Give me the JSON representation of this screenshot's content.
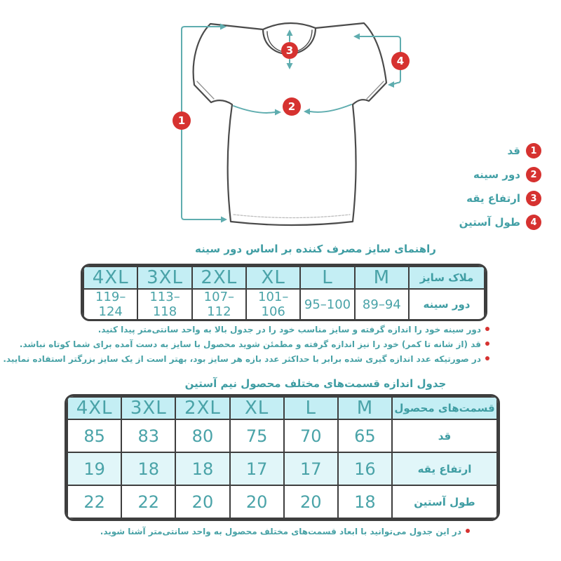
{
  "colors": {
    "teal_text": "#43a0a6",
    "red_marker": "#d63230",
    "table_header_fill": "#c4eef4",
    "table_stripe_fill": "#e1f6f9",
    "table_border": "#3e3e3e"
  },
  "diagram": {
    "markers": [
      {
        "num": "1",
        "label": "قد"
      },
      {
        "num": "2",
        "label": "دور سینه"
      },
      {
        "num": "3",
        "label": "ارتفاع یقه"
      },
      {
        "num": "4",
        "label": "طول آستین"
      }
    ]
  },
  "size_guide": {
    "title": "راهنمای سایز مصرف کننده بر اساس دور سینه",
    "table": {
      "header": [
        "ملاک سایز",
        "M",
        "L",
        "XL",
        "2XL",
        "3XL",
        "4XL"
      ],
      "rows": [
        [
          "دور سینه",
          "89–94",
          "95–100",
          "101–106",
          "107–112",
          "113–118",
          "119–124"
        ]
      ]
    },
    "notes": [
      "دور سینه خود را اندازه گرفته و سایز مناسب خود را در جدول بالا به واحد سانتی‌متر پیدا کنید.",
      "قد (از شانه تا کمر) خود را نیز اندازه گرفته و مطمئن شوید محصول با سایز به دست آمده برای شما کوتاه نباشد.",
      "در صورتیکه عدد اندازه گیری شده برابر با حداکثر عدد بازه هر سایز بود، بهتر است از یک سایز بزرگتر استفاده نمایید."
    ]
  },
  "parts_table": {
    "title": "جدول اندازه قسمت‌های مختلف محصول نیم آستین",
    "table": {
      "header": [
        "قسمت‌های محصول",
        "M",
        "L",
        "XL",
        "2XL",
        "3XL",
        "4XL"
      ],
      "rows": [
        [
          "قد",
          "65",
          "70",
          "75",
          "80",
          "83",
          "85"
        ],
        [
          "ارتفاع یقه",
          "16",
          "17",
          "17",
          "18",
          "18",
          "19"
        ],
        [
          "طول آستین",
          "18",
          "20",
          "20",
          "20",
          "22",
          "22"
        ]
      ]
    },
    "notes": [
      "در این جدول می‌توانید با ابعاد قسمت‌های مختلف محصول به واحد سانتی‌متر آشنا شوید."
    ]
  }
}
